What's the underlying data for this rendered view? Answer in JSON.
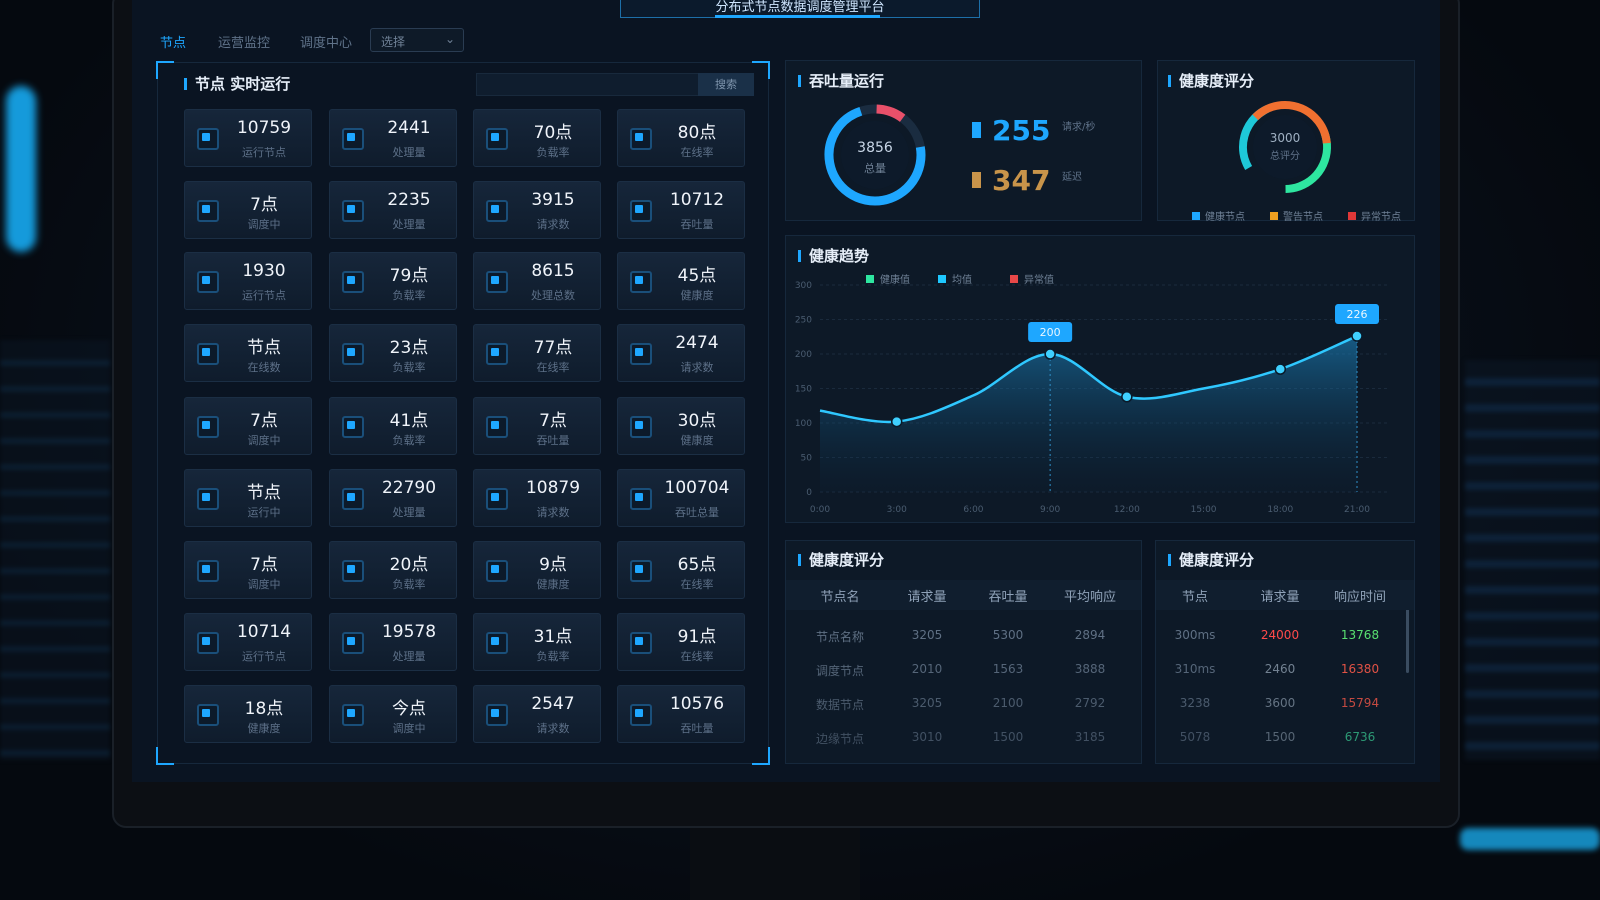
{
  "header": {
    "title": "分布式节点数据调度管理平台",
    "tabs": [
      "节点",
      "运营监控",
      "调度中心"
    ],
    "select": "选择"
  },
  "nodes_panel": {
    "title": "节点 实时运行",
    "button": "搜索",
    "tiles": [
      {
        "value": "10759",
        "label": "运行节点"
      },
      {
        "value": "2441",
        "label": "处理量"
      },
      {
        "value": "70点",
        "label": "负载率"
      },
      {
        "value": "80点",
        "label": "在线率"
      },
      {
        "value": "7点",
        "label": "调度中"
      },
      {
        "value": "2235",
        "label": "处理量"
      },
      {
        "value": "3915",
        "label": "请求数"
      },
      {
        "value": "10712",
        "label": "吞吐量"
      },
      {
        "value": "1930",
        "label": "运行节点"
      },
      {
        "value": "79点",
        "label": "负载率"
      },
      {
        "value": "8615",
        "label": "处理总数"
      },
      {
        "value": "45点",
        "label": "健康度"
      },
      {
        "value": "节点",
        "label": "在线数"
      },
      {
        "value": "23点",
        "label": "负载率"
      },
      {
        "value": "77点",
        "label": "在线率"
      },
      {
        "value": "2474",
        "label": "请求数"
      },
      {
        "value": "7点",
        "label": "调度中"
      },
      {
        "value": "41点",
        "label": "负载率"
      },
      {
        "value": "7点",
        "label": "吞吐量"
      },
      {
        "value": "30点",
        "label": "健康度"
      },
      {
        "value": "节点",
        "label": "运行中"
      },
      {
        "value": "22790",
        "label": "处理量"
      },
      {
        "value": "10879",
        "label": "请求数"
      },
      {
        "value": "100704",
        "label": "吞吐总量"
      },
      {
        "value": "7点",
        "label": "调度中"
      },
      {
        "value": "20点",
        "label": "负载率"
      },
      {
        "value": "9点",
        "label": "健康度"
      },
      {
        "value": "65点",
        "label": "在线率"
      },
      {
        "value": "10714",
        "label": "运行节点"
      },
      {
        "value": "19578",
        "label": "处理量"
      },
      {
        "value": "31点",
        "label": "负载率"
      },
      {
        "value": "91点",
        "label": "在线率"
      },
      {
        "value": "18点",
        "label": "健康度"
      },
      {
        "value": "今点",
        "label": "调度中"
      },
      {
        "value": "2547",
        "label": "请求数"
      },
      {
        "value": "10576",
        "label": "吞吐量"
      }
    ]
  },
  "throughput": {
    "title": "吞吐量运行",
    "center_value": "3856",
    "center_label": "总量",
    "stats": [
      {
        "value": "255",
        "unit": "请求/秒",
        "color": "#1ea7ff"
      },
      {
        "value": "347",
        "unit": "延迟",
        "color": "#c8944a"
      }
    ]
  },
  "health": {
    "title": "健康度评分",
    "center_value": "3000",
    "center_label": "总评分",
    "legend": [
      {
        "name": "健康节点",
        "color": "#1ea7ff"
      },
      {
        "name": "警告节点",
        "color": "#f0a020"
      },
      {
        "name": "异常节点",
        "color": "#e03838"
      }
    ]
  },
  "chart_data": {
    "type": "line",
    "title": "健康趋势",
    "legend": [
      {
        "name": "健康值",
        "color": "#2ee6a0"
      },
      {
        "name": "均值",
        "color": "#1ec8ff"
      },
      {
        "name": "异常值",
        "color": "#e84848"
      }
    ],
    "categories": [
      "0:00",
      "3:00",
      "6:00",
      "9:00",
      "12:00",
      "15:00",
      "18:00",
      "21:00"
    ],
    "series": [
      {
        "color": "#2fc8ff",
        "values": [
          118,
          102,
          140,
          200,
          138,
          150,
          178,
          226
        ]
      }
    ],
    "markers": [
      1,
      3,
      4,
      6,
      7
    ],
    "callouts": [
      3,
      7
    ],
    "ylim": [
      0,
      300
    ],
    "yticks": [
      0,
      50,
      100,
      150,
      200,
      250,
      300
    ],
    "grid": true
  },
  "tables": [
    {
      "title": "健康度评分",
      "columns": [
        "节点名",
        "请求量",
        "吞吐量",
        "平均响应"
      ],
      "rows": [
        [
          "节点名称",
          "3205",
          "5300",
          "2894"
        ],
        [
          "调度节点",
          "2010",
          "1563",
          "3888"
        ],
        [
          "数据节点",
          "3205",
          "2100",
          "2792"
        ],
        [
          "边缘节点",
          "3010",
          "1500",
          "3185"
        ]
      ]
    },
    {
      "title": "健康度评分",
      "columns": [
        "节点",
        "请求量",
        "响应时间"
      ],
      "rows": [
        [
          "300ms",
          "24000",
          "13768"
        ],
        [
          "310ms",
          "2460",
          "16380"
        ],
        [
          "3238",
          "3600",
          "15794"
        ],
        [
          "5078",
          "1500",
          "6736"
        ]
      ],
      "last_column_colors": [
        "#58e070",
        "#ff5a4a",
        "#ff5a4a",
        "#3ee0a0"
      ],
      "second_column_colors": [
        "#ff4a4a",
        "#8090a0",
        "#8090a0",
        "#8090a0"
      ]
    }
  ]
}
